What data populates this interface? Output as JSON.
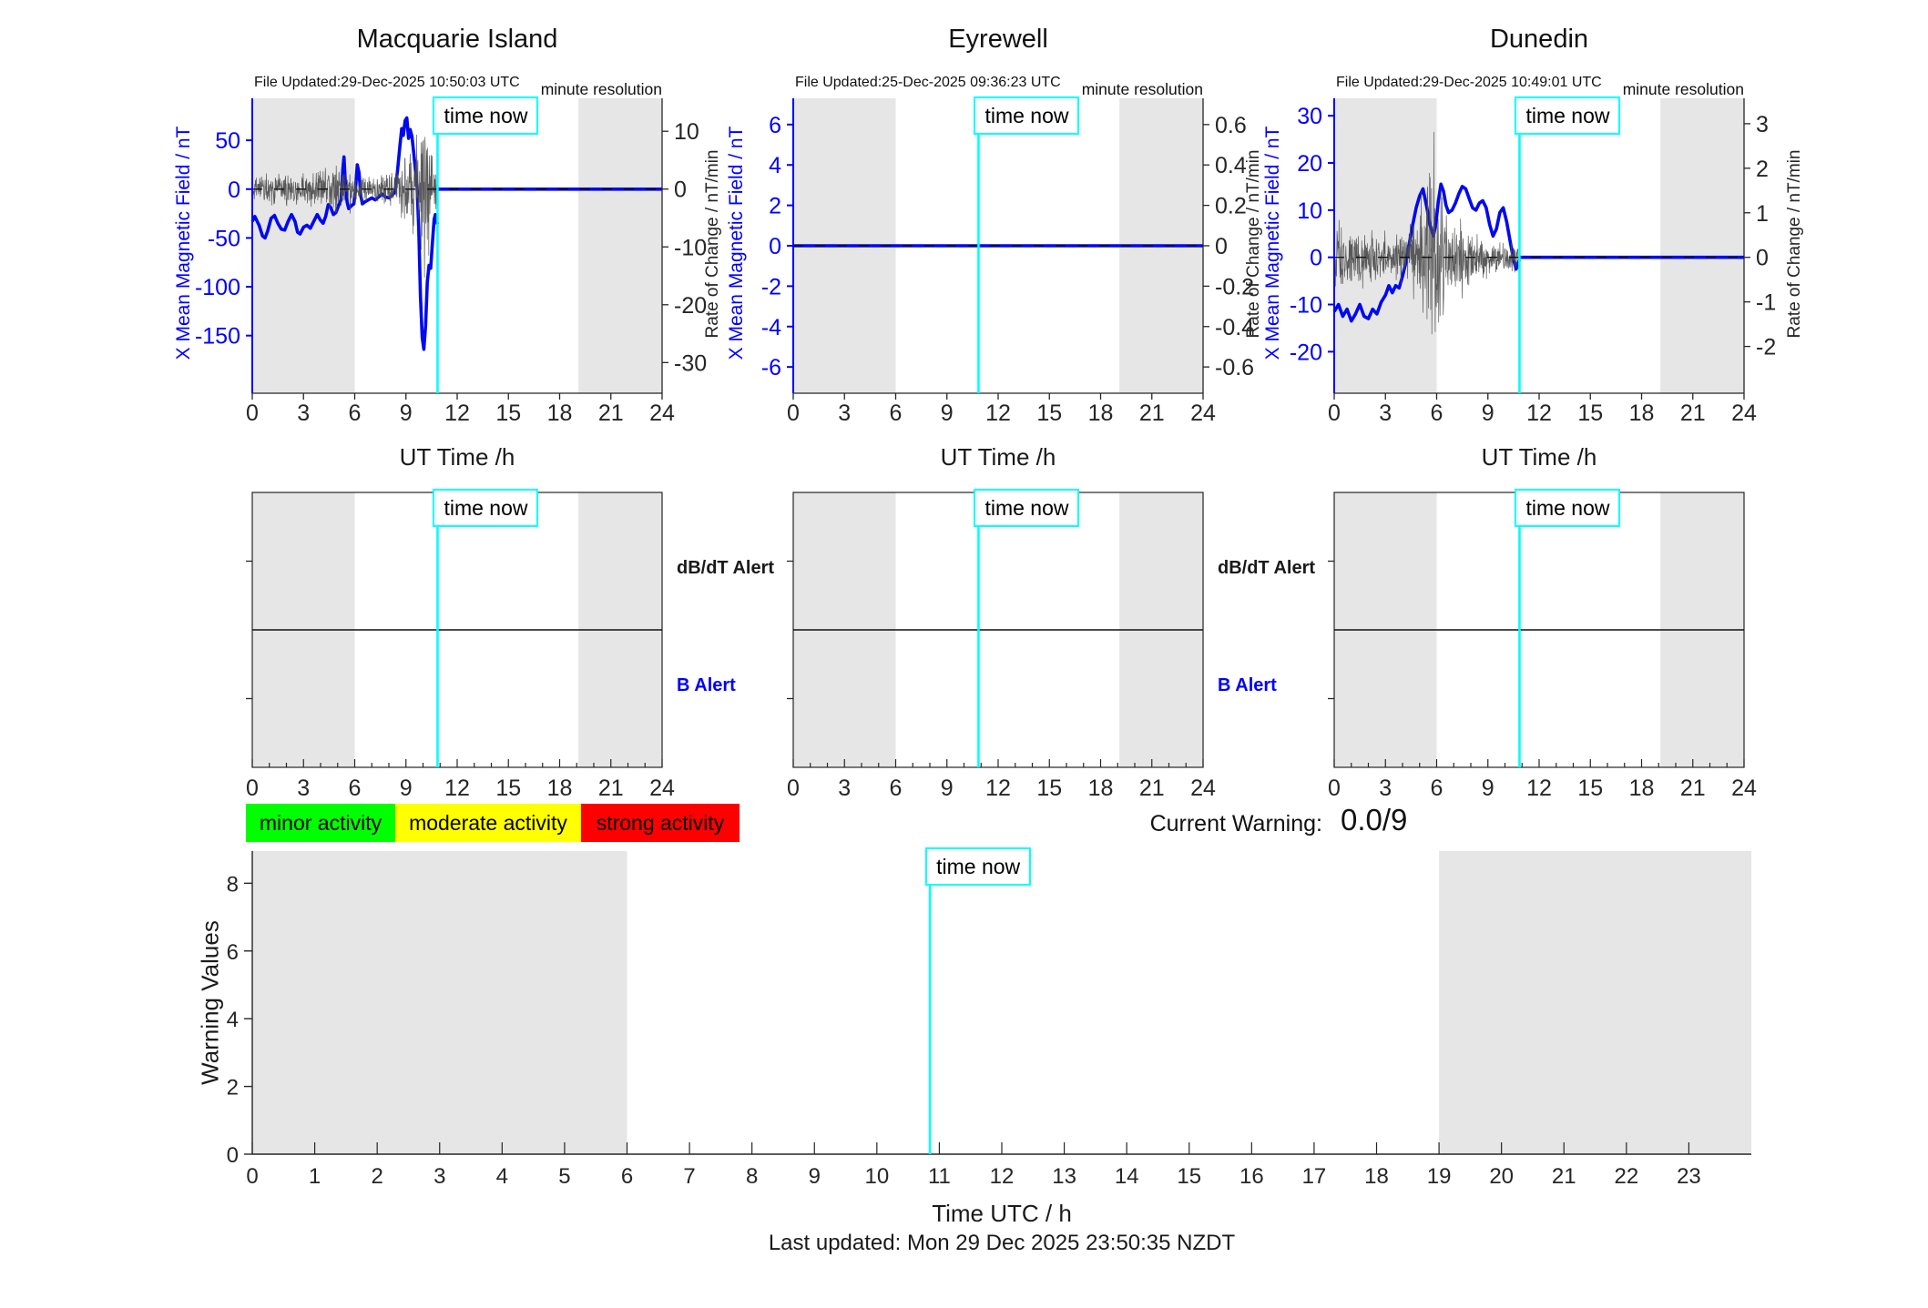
{
  "page": {
    "time_now_label": "time now",
    "current_warning_label": "Current Warning:",
    "current_warning_value": "0.0/9",
    "last_updated": "Last updated: Mon 29 Dec 2025 23:50:35 NZDT",
    "legend": [
      {
        "label": "minor activity",
        "color": "#00ff00"
      },
      {
        "label": "moderate activity",
        "color": "#ffff00"
      },
      {
        "label": "strong activity",
        "color": "#ff0000"
      }
    ],
    "colors": {
      "axis_blue": "#0000ff",
      "data_blue": "#0009f0",
      "noise_gray": "#4d4d4d",
      "night_shade": "#e6e6e6",
      "cyan": "#00ffff",
      "ink": "#1a1a1a"
    }
  },
  "chart_data": [
    {
      "id": "macquarie-island-field",
      "type": "line",
      "title": "Macquarie Island",
      "file_updated": "File Updated:29-Dec-2025 10:50:03 UTC",
      "note": "minute resolution",
      "xlabel": "UT Time /h",
      "xlim": [
        0,
        24
      ],
      "x_ticks": [
        0,
        3,
        6,
        9,
        12,
        15,
        18,
        21,
        24
      ],
      "night_shading": [
        [
          0,
          6
        ],
        [
          19.1,
          24
        ]
      ],
      "time_now": 10.85,
      "zero_line": true,
      "left_axis": {
        "label": "X Mean Magnetic Field / nT",
        "ticks": [
          50,
          0,
          -50,
          -100,
          -150
        ],
        "lim": [
          -209,
          93
        ]
      },
      "right_axis": {
        "label": "Rate of Change / nT/min",
        "ticks": [
          10,
          0,
          -10,
          -20,
          -30
        ],
        "lim": [
          -35.3,
          15.7
        ]
      },
      "series": [
        {
          "name": "x-mean-magnetic-field",
          "axis": "left",
          "style": "bold",
          "points": [
            [
              0,
              -33
            ],
            [
              0.15,
              -28
            ],
            [
              0.4,
              -37
            ],
            [
              0.6,
              -48
            ],
            [
              0.75,
              -50
            ],
            [
              0.9,
              -43
            ],
            [
              1.1,
              -30
            ],
            [
              1.3,
              -27
            ],
            [
              1.5,
              -35
            ],
            [
              1.7,
              -41
            ],
            [
              1.9,
              -42
            ],
            [
              2.1,
              -33
            ],
            [
              2.3,
              -26
            ],
            [
              2.5,
              -33
            ],
            [
              2.65,
              -44
            ],
            [
              2.8,
              -46
            ],
            [
              3,
              -39
            ],
            [
              3.2,
              -37
            ],
            [
              3.4,
              -40
            ],
            [
              3.6,
              -33
            ],
            [
              3.8,
              -26
            ],
            [
              4,
              -32
            ],
            [
              4.15,
              -35
            ],
            [
              4.3,
              -28
            ],
            [
              4.45,
              -16
            ],
            [
              4.6,
              -19
            ],
            [
              4.75,
              -26
            ],
            [
              4.9,
              -24
            ],
            [
              5.05,
              -17
            ],
            [
              5.2,
              -11
            ],
            [
              5.3,
              20
            ],
            [
              5.37,
              33
            ],
            [
              5.45,
              6
            ],
            [
              5.55,
              -13
            ],
            [
              5.65,
              -20
            ],
            [
              5.8,
              -17
            ],
            [
              5.95,
              -15
            ],
            [
              6.05,
              0
            ],
            [
              6.15,
              25
            ],
            [
              6.25,
              17
            ],
            [
              6.35,
              -6
            ],
            [
              6.45,
              -15
            ],
            [
              6.6,
              -13
            ],
            [
              6.8,
              -11
            ],
            [
              7,
              -9
            ],
            [
              7.2,
              -11
            ],
            [
              7.4,
              -8
            ],
            [
              7.6,
              -5
            ],
            [
              7.8,
              -8
            ],
            [
              8,
              -9
            ],
            [
              8.2,
              -6
            ],
            [
              8.35,
              -3
            ],
            [
              8.5,
              18
            ],
            [
              8.65,
              45
            ],
            [
              8.75,
              62
            ],
            [
              8.85,
              55
            ],
            [
              8.95,
              70
            ],
            [
              9.05,
              73
            ],
            [
              9.15,
              52
            ],
            [
              9.25,
              61
            ],
            [
              9.35,
              54
            ],
            [
              9.45,
              38
            ],
            [
              9.55,
              20
            ],
            [
              9.65,
              4
            ],
            [
              9.75,
              -40
            ],
            [
              9.85,
              -110
            ],
            [
              9.95,
              -152
            ],
            [
              10.05,
              -164
            ],
            [
              10.15,
              -140
            ],
            [
              10.25,
              -95
            ],
            [
              10.35,
              -78
            ],
            [
              10.45,
              -81
            ],
            [
              10.55,
              -55
            ],
            [
              10.65,
              -31
            ],
            [
              10.72,
              -26
            ],
            [
              10.8,
              -33
            ],
            [
              10.85,
              -36
            ]
          ]
        },
        {
          "name": "flat-after-time-now",
          "axis": "left",
          "style": "bold",
          "points": [
            [
              10.85,
              0
            ],
            [
              24,
              0
            ]
          ]
        },
        {
          "name": "rate-of-change-noise",
          "axis": "right",
          "style": "noise",
          "noise": {
            "seed": 11,
            "range": [
              0,
              10.85
            ],
            "envelope": [
              [
                0,
                3.2
              ],
              [
                3,
                3.5
              ],
              [
                4,
                4.2
              ],
              [
                5,
                4.6
              ],
              [
                5.5,
                3.4
              ],
              [
                6,
                2.6
              ],
              [
                7,
                2.4
              ],
              [
                8,
                3.0
              ],
              [
                8.5,
                4.5
              ],
              [
                9,
                6.5
              ],
              [
                9.55,
                8
              ],
              [
                9.75,
                16
              ],
              [
                10.05,
                20
              ],
              [
                10.25,
                12
              ],
              [
                10.5,
                7
              ],
              [
                10.85,
                5.5
              ]
            ]
          }
        }
      ]
    },
    {
      "id": "eyrewell-field",
      "type": "line",
      "title": "Eyrewell",
      "file_updated": "File Updated:25-Dec-2025 09:36:23 UTC",
      "note": "minute resolution",
      "xlabel": "UT Time /h",
      "xlim": [
        0,
        24
      ],
      "x_ticks": [
        0,
        3,
        6,
        9,
        12,
        15,
        18,
        21,
        24
      ],
      "night_shading": [
        [
          0,
          6
        ],
        [
          19.1,
          24
        ]
      ],
      "time_now": 10.85,
      "zero_line": true,
      "left_axis": {
        "label": "X Mean Magnetic Field / nT",
        "ticks": [
          6,
          4,
          2,
          0,
          -2,
          -4,
          -6
        ],
        "lim": [
          -7.3,
          7.3
        ]
      },
      "right_axis": {
        "label": "Rate of Change / nT/min",
        "ticks": [
          0.6,
          0.4,
          0.2,
          0,
          -0.2,
          -0.4,
          -0.6
        ],
        "lim": [
          -0.73,
          0.73
        ]
      },
      "series": [
        {
          "name": "x-mean-magnetic-field",
          "axis": "left",
          "style": "bold",
          "points": [
            [
              0,
              0
            ],
            [
              24,
              0
            ]
          ]
        }
      ]
    },
    {
      "id": "dunedin-field",
      "type": "line",
      "title": "Dunedin",
      "file_updated": "File Updated:29-Dec-2025 10:49:01 UTC",
      "note": "minute resolution",
      "xlabel": "UT Time /h",
      "xlim": [
        0,
        24
      ],
      "x_ticks": [
        0,
        3,
        6,
        9,
        12,
        15,
        18,
        21,
        24
      ],
      "night_shading": [
        [
          0,
          6
        ],
        [
          19.1,
          24
        ]
      ],
      "time_now": 10.85,
      "zero_line": true,
      "left_axis": {
        "label": "X Mean Magnetic Field / nT",
        "ticks": [
          30,
          20,
          10,
          0,
          -10,
          -20
        ],
        "lim": [
          -28.8,
          33.7
        ]
      },
      "right_axis": {
        "label": "Rate of Change / nT/min",
        "ticks": [
          3,
          2,
          1,
          0,
          -1,
          -2
        ],
        "lim": [
          -3.05,
          3.57
        ]
      },
      "series": [
        {
          "name": "x-mean-magnetic-field",
          "axis": "left",
          "style": "bold",
          "points": [
            [
              0,
              -11.5
            ],
            [
              0.25,
              -10
            ],
            [
              0.5,
              -12.5
            ],
            [
              0.75,
              -11
            ],
            [
              1,
              -13.5
            ],
            [
              1.25,
              -12
            ],
            [
              1.5,
              -10
            ],
            [
              1.75,
              -12.5
            ],
            [
              2,
              -13
            ],
            [
              2.25,
              -11
            ],
            [
              2.5,
              -12
            ],
            [
              2.75,
              -9.5
            ],
            [
              3,
              -8
            ],
            [
              3.2,
              -6
            ],
            [
              3.4,
              -7.5
            ],
            [
              3.6,
              -6
            ],
            [
              3.8,
              -6.5
            ],
            [
              4,
              -4
            ],
            [
              4.2,
              -1
            ],
            [
              4.4,
              3
            ],
            [
              4.6,
              7
            ],
            [
              4.8,
              10.5
            ],
            [
              5,
              13
            ],
            [
              5.2,
              14.5
            ],
            [
              5.4,
              11
            ],
            [
              5.6,
              7
            ],
            [
              5.8,
              4.5
            ],
            [
              5.95,
              7
            ],
            [
              6.1,
              12
            ],
            [
              6.25,
              15.5
            ],
            [
              6.4,
              14
            ],
            [
              6.55,
              11
            ],
            [
              6.7,
              9.5
            ],
            [
              6.9,
              10
            ],
            [
              7.1,
              11.5
            ],
            [
              7.3,
              13.5
            ],
            [
              7.5,
              15
            ],
            [
              7.7,
              14.5
            ],
            [
              7.9,
              12.5
            ],
            [
              8.1,
              10.5
            ],
            [
              8.3,
              10
            ],
            [
              8.5,
              11.5
            ],
            [
              8.7,
              12
            ],
            [
              8.9,
              10.5
            ],
            [
              9.1,
              7
            ],
            [
              9.3,
              4.5
            ],
            [
              9.5,
              6
            ],
            [
              9.7,
              9.5
            ],
            [
              9.9,
              10.5
            ],
            [
              10.1,
              7.5
            ],
            [
              10.3,
              3.5
            ],
            [
              10.5,
              -0.5
            ],
            [
              10.65,
              -2.5
            ],
            [
              10.85,
              -0.5
            ]
          ]
        },
        {
          "name": "flat-after-time-now",
          "axis": "left",
          "style": "bold",
          "points": [
            [
              10.85,
              0
            ],
            [
              24,
              0
            ]
          ]
        },
        {
          "name": "rate-of-change-noise",
          "axis": "right",
          "style": "noise",
          "noise": {
            "seed": 23,
            "range": [
              0,
              10.85
            ],
            "envelope": [
              [
                0,
                0.8
              ],
              [
                1,
                0.75
              ],
              [
                2,
                0.7
              ],
              [
                3,
                0.55
              ],
              [
                4,
                0.65
              ],
              [
                5,
                1.0
              ],
              [
                5.5,
                2.1
              ],
              [
                6.2,
                2.1
              ],
              [
                6.6,
                0.9
              ],
              [
                7.5,
                0.75
              ],
              [
                8.5,
                0.6
              ],
              [
                9.5,
                0.45
              ],
              [
                10.85,
                0.4
              ]
            ]
          }
        }
      ]
    },
    {
      "id": "macquarie-alert-timeline",
      "type": "alert-timeline",
      "station": "Macquarie Island",
      "xlim": [
        0,
        24
      ],
      "x_ticks": [
        0,
        3,
        6,
        9,
        12,
        15,
        18,
        21,
        24
      ],
      "x_minor_step": 1,
      "night_shading": [
        [
          0,
          6
        ],
        [
          19.1,
          24
        ]
      ],
      "time_now": 10.85,
      "labels": {
        "top": "dB/dT Alert",
        "bottom": "B Alert"
      },
      "show_labels": true
    },
    {
      "id": "eyrewell-alert-timeline",
      "type": "alert-timeline",
      "station": "Eyrewell",
      "xlim": [
        0,
        24
      ],
      "x_ticks": [
        0,
        3,
        6,
        9,
        12,
        15,
        18,
        21,
        24
      ],
      "x_minor_step": 1,
      "night_shading": [
        [
          0,
          6
        ],
        [
          19.1,
          24
        ]
      ],
      "time_now": 10.85,
      "labels": {
        "top": "dB/dT Alert",
        "bottom": "B Alert"
      },
      "show_labels": true
    },
    {
      "id": "dunedin-alert-timeline",
      "type": "alert-timeline",
      "station": "Dunedin",
      "xlim": [
        0,
        24
      ],
      "x_ticks": [
        0,
        3,
        6,
        9,
        12,
        15,
        18,
        21,
        24
      ],
      "x_minor_step": 1,
      "night_shading": [
        [
          0,
          6
        ],
        [
          19.1,
          24
        ]
      ],
      "time_now": 10.85,
      "labels": {
        "top": "dB/dT Alert",
        "bottom": "B Alert"
      },
      "show_labels": false
    },
    {
      "id": "warning-values",
      "type": "line",
      "ylabel": "Warning Values",
      "xlabel": "Time UTC / h",
      "ylim": [
        0,
        8.95
      ],
      "y_ticks": [
        0,
        2,
        4,
        6,
        8
      ],
      "xlim": [
        0,
        24
      ],
      "x_ticks": [
        0,
        1,
        2,
        3,
        4,
        5,
        6,
        7,
        8,
        9,
        10,
        11,
        12,
        13,
        14,
        15,
        16,
        17,
        18,
        19,
        20,
        21,
        22,
        23
      ],
      "night_shading": [
        [
          0,
          6
        ],
        [
          19,
          24
        ]
      ],
      "time_now": 10.85,
      "series": []
    }
  ]
}
